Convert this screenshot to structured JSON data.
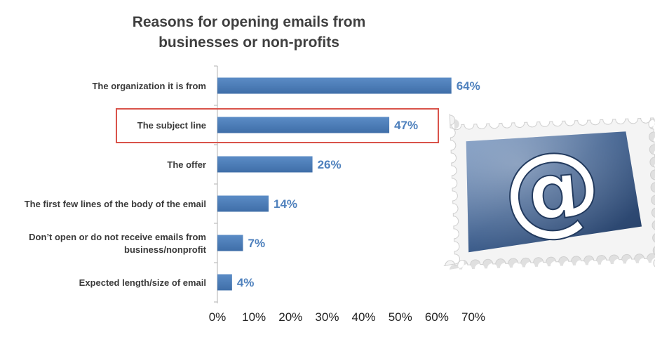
{
  "chart_data": {
    "type": "bar",
    "orientation": "horizontal",
    "title": "Reasons for opening emails from businesses or non-profits",
    "title_lines": [
      "Reasons for opening emails from",
      "businesses or non-profits"
    ],
    "categories": [
      "The organization it is from",
      "The subject line",
      "The offer",
      "The first few lines of the body of the email",
      "Don’t open or do not receive emails from business/nonprofit",
      "Expected length/size of email"
    ],
    "category_lines": [
      [
        "The organization it is from"
      ],
      [
        "The subject line"
      ],
      [
        "The offer"
      ],
      [
        "The first few lines of the body of the email"
      ],
      [
        "Don’t open or do not receive emails from",
        "business/nonprofit"
      ],
      [
        "Expected length/size of email"
      ]
    ],
    "values": [
      64,
      47,
      26,
      14,
      7,
      4
    ],
    "value_labels": [
      "64%",
      "47%",
      "26%",
      "14%",
      "7%",
      "4%"
    ],
    "xlim": [
      0,
      70
    ],
    "ticks": [
      0,
      10,
      20,
      30,
      40,
      50,
      60,
      70
    ],
    "tick_labels": [
      "0%",
      "10%",
      "20%",
      "30%",
      "40%",
      "50%",
      "60%",
      "70%"
    ],
    "grid": false,
    "highlighted_category": "The subject line",
    "colors": {
      "bar": "#4f81bd",
      "value_label": "#4f81bd",
      "highlight_box": "#d9534a",
      "stamp_blue": "#3d5f8f"
    }
  },
  "decoration": {
    "icon": "email-at-stamp-icon",
    "symbol": "@"
  }
}
